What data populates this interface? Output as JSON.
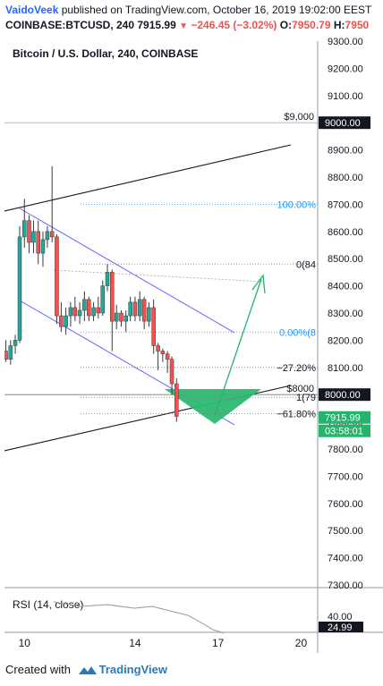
{
  "header": {
    "author": "VaidoVeek",
    "published_text": " published on TradingView.com, October 16, 2019 19:02:00 EEST",
    "symbol": "COINBASE:BTCUSD, 240",
    "last_price": "7915.99",
    "change": "−246.45 (−3.02%)",
    "open_label": "O:",
    "open_value": "7950.79",
    "high_label": "H:",
    "high_value": "7950"
  },
  "chart_title": "Bitcoin / U.S. Dollar, 240, COINBASE",
  "colors": {
    "up": "#26a69a",
    "down": "#ef5350",
    "fib": "#2196f3",
    "channel": "#6161ff",
    "target": "#26b36b",
    "dark": "#131722"
  },
  "chart_data": {
    "type": "candlestick",
    "title": "Bitcoin / U.S. Dollar, 240, COINBASE",
    "price_axis": {
      "range": [
        7300,
        9300
      ],
      "ticks": [
        "9300.00",
        "9200.00",
        "9100.00",
        "9000.00",
        "8900.00",
        "8800.00",
        "8700.00",
        "8600.00",
        "8500.00",
        "8400.00",
        "8300.00",
        "8200.00",
        "8100.00",
        "8000.00",
        "7900.00",
        "7800.00",
        "7700.00",
        "7600.00",
        "7500.00",
        "7400.00",
        "7300.00"
      ],
      "tick_values": [
        9300,
        9200,
        9100,
        9000,
        8900,
        8800,
        8700,
        8600,
        8500,
        8400,
        8300,
        8200,
        8100,
        8000,
        7900,
        7800,
        7700,
        7600,
        7500,
        7400,
        7300
      ]
    },
    "time_axis": {
      "labels": [
        "10",
        "14",
        "17",
        "20"
      ],
      "label_days": [
        10,
        14,
        17,
        20
      ],
      "range_days": [
        9.28,
        20.6
      ]
    },
    "candles": [
      {
        "day": 9.33,
        "o": 8160,
        "h": 8200,
        "l": 8120,
        "c": 8130
      },
      {
        "day": 9.5,
        "o": 8130,
        "h": 8200,
        "l": 8110,
        "c": 8180
      },
      {
        "day": 9.67,
        "o": 8180,
        "h": 8220,
        "l": 8150,
        "c": 8200
      },
      {
        "day": 9.83,
        "o": 8200,
        "h": 8620,
        "l": 8190,
        "c": 8580
      },
      {
        "day": 10.0,
        "o": 8580,
        "h": 8720,
        "l": 8540,
        "c": 8640
      },
      {
        "day": 10.17,
        "o": 8640,
        "h": 8660,
        "l": 8520,
        "c": 8560
      },
      {
        "day": 10.33,
        "o": 8560,
        "h": 8640,
        "l": 8520,
        "c": 8600
      },
      {
        "day": 10.5,
        "o": 8600,
        "h": 8640,
        "l": 8480,
        "c": 8520
      },
      {
        "day": 10.67,
        "o": 8520,
        "h": 8600,
        "l": 8470,
        "c": 8570
      },
      {
        "day": 10.83,
        "o": 8570,
        "h": 8620,
        "l": 8540,
        "c": 8600
      },
      {
        "day": 11.0,
        "o": 8600,
        "h": 8840,
        "l": 8560,
        "c": 8580
      },
      {
        "day": 11.17,
        "o": 8580,
        "h": 8590,
        "l": 8260,
        "c": 8290
      },
      {
        "day": 11.33,
        "o": 8290,
        "h": 8340,
        "l": 8230,
        "c": 8250
      },
      {
        "day": 11.5,
        "o": 8250,
        "h": 8320,
        "l": 8220,
        "c": 8290
      },
      {
        "day": 11.67,
        "o": 8290,
        "h": 8340,
        "l": 8250,
        "c": 8320
      },
      {
        "day": 11.83,
        "o": 8320,
        "h": 8360,
        "l": 8270,
        "c": 8290
      },
      {
        "day": 12.0,
        "o": 8290,
        "h": 8340,
        "l": 8260,
        "c": 8310
      },
      {
        "day": 12.17,
        "o": 8310,
        "h": 8380,
        "l": 8270,
        "c": 8350
      },
      {
        "day": 12.33,
        "o": 8350,
        "h": 8360,
        "l": 8270,
        "c": 8290
      },
      {
        "day": 12.5,
        "o": 8290,
        "h": 8340,
        "l": 8270,
        "c": 8320
      },
      {
        "day": 12.67,
        "o": 8320,
        "h": 8360,
        "l": 8280,
        "c": 8300
      },
      {
        "day": 12.83,
        "o": 8300,
        "h": 8420,
        "l": 8290,
        "c": 8400
      },
      {
        "day": 13.0,
        "o": 8400,
        "h": 8480,
        "l": 8380,
        "c": 8450
      },
      {
        "day": 13.17,
        "o": 8450,
        "h": 8460,
        "l": 8160,
        "c": 8270
      },
      {
        "day": 13.33,
        "o": 8270,
        "h": 8330,
        "l": 8240,
        "c": 8300
      },
      {
        "day": 13.5,
        "o": 8300,
        "h": 8310,
        "l": 8250,
        "c": 8270
      },
      {
        "day": 13.67,
        "o": 8270,
        "h": 8310,
        "l": 8230,
        "c": 8290
      },
      {
        "day": 13.83,
        "o": 8290,
        "h": 8360,
        "l": 8270,
        "c": 8340
      },
      {
        "day": 14.0,
        "o": 8340,
        "h": 8360,
        "l": 8270,
        "c": 8290
      },
      {
        "day": 14.17,
        "o": 8290,
        "h": 8380,
        "l": 8270,
        "c": 8350
      },
      {
        "day": 14.33,
        "o": 8350,
        "h": 8360,
        "l": 8240,
        "c": 8270
      },
      {
        "day": 14.5,
        "o": 8270,
        "h": 8340,
        "l": 8250,
        "c": 8320
      },
      {
        "day": 14.67,
        "o": 8320,
        "h": 8350,
        "l": 8150,
        "c": 8180
      },
      {
        "day": 14.83,
        "o": 8180,
        "h": 8190,
        "l": 8090,
        "c": 8160
      },
      {
        "day": 15.0,
        "o": 8160,
        "h": 8170,
        "l": 8120,
        "c": 8150
      },
      {
        "day": 15.17,
        "o": 8150,
        "h": 8160,
        "l": 8080,
        "c": 8130
      },
      {
        "day": 15.33,
        "o": 8130,
        "h": 8140,
        "l": 8000,
        "c": 8040
      },
      {
        "day": 15.5,
        "o": 8040,
        "h": 8060,
        "l": 7900,
        "c": 7920
      }
    ],
    "horizontal_lines": [
      {
        "price": 9000,
        "label": "$9,000"
      },
      {
        "price": 8000,
        "label": "$8000"
      }
    ],
    "price_labels": [
      {
        "price": 9000,
        "text": "9000.00",
        "style": "black"
      },
      {
        "price": 8000,
        "text": "8000.00",
        "style": "black"
      },
      {
        "price": 7915.99,
        "text": "7915.99",
        "style": "green"
      }
    ],
    "countdown": "03:58:01",
    "fib_levels": [
      {
        "label": "100.00%",
        "price": 8700
      },
      {
        "label": "0.00%(8",
        "price": 8230
      },
      {
        "label": "0(84",
        "price": 8480
      },
      {
        "label": "−27.20%",
        "price": 8100
      },
      {
        "label": "1(79",
        "price": 7990
      },
      {
        "label": "−61.80%",
        "price": 7930
      }
    ],
    "indicator": {
      "name": "RSI (14, close)",
      "ticks": [
        "40.00"
      ],
      "value": "24.99"
    }
  },
  "footer": {
    "created_with": "Created with",
    "brand": "TradingView"
  }
}
